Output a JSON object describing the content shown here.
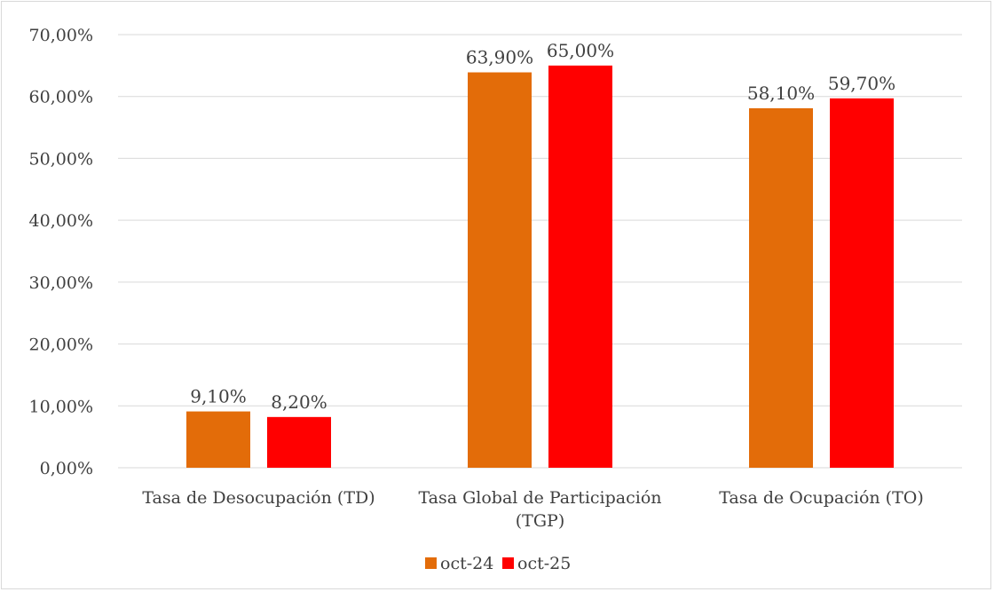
{
  "chart_data": {
    "type": "bar",
    "categories": [
      [
        "Tasa de Desocupación (TD)"
      ],
      [
        "Tasa Global de Participación",
        "(TGP)"
      ],
      [
        "Tasa de Ocupación (TO)"
      ]
    ],
    "series": [
      {
        "name": "oct-24",
        "color": "#E36C09",
        "values": [
          9.1,
          63.9,
          58.1
        ],
        "labels": [
          "9,10%",
          "63,90%",
          "58,10%"
        ]
      },
      {
        "name": "oct-25",
        "color": "#FF0000",
        "values": [
          8.2,
          65.0,
          59.7
        ],
        "labels": [
          "8,20%",
          "65,00%",
          "59,70%"
        ]
      }
    ],
    "ylim": [
      0,
      70
    ],
    "yticks": [
      0,
      10,
      20,
      30,
      40,
      50,
      60,
      70
    ],
    "ytick_labels": [
      "0,00%",
      "10,00%",
      "20,00%",
      "30,00%",
      "40,00%",
      "50,00%",
      "60,00%",
      "70,00%"
    ],
    "grid": true,
    "legend_position": "bottom",
    "title": "",
    "xlabel": "",
    "ylabel": ""
  }
}
